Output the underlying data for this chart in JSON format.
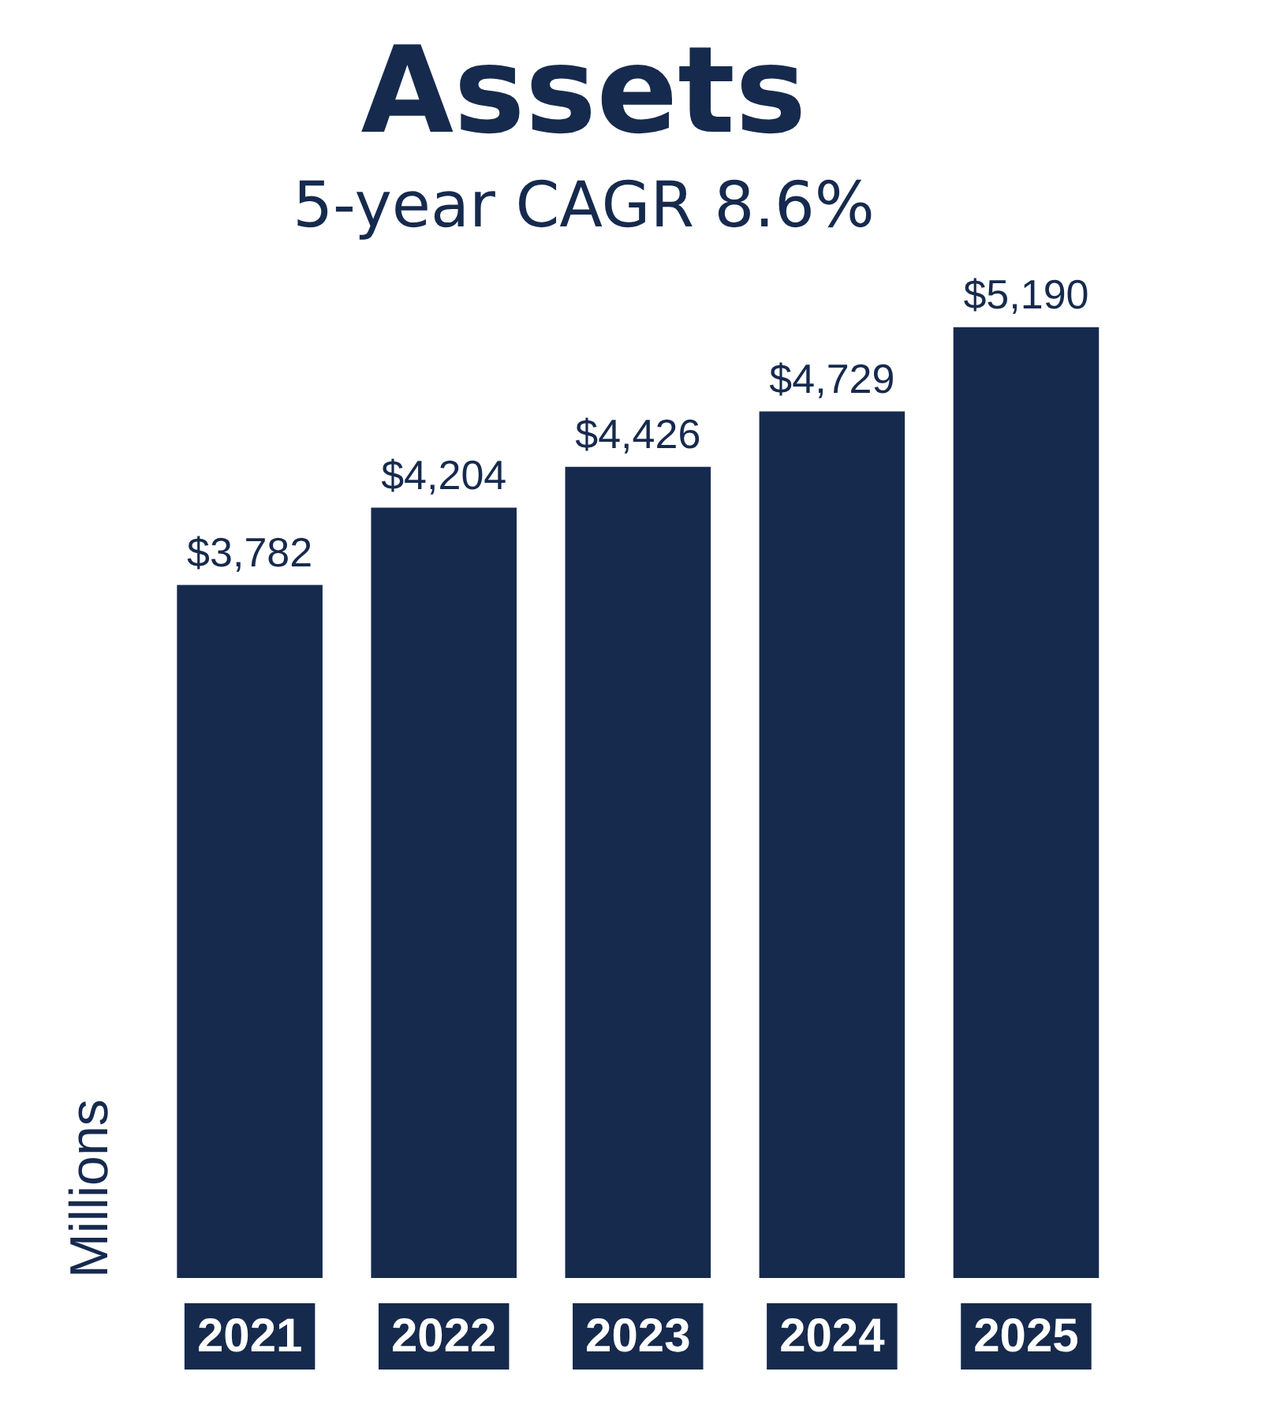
{
  "chart_data": {
    "type": "bar",
    "title": "Assets",
    "subtitle": "5-year CAGR 8.6%",
    "ylabel": "Millions",
    "categories": [
      "2021",
      "2022",
      "2023",
      "2024",
      "2025"
    ],
    "values": [
      3782,
      4204,
      4426,
      4729,
      5190
    ],
    "value_labels": [
      "$3,782",
      "$4,204",
      "$4,426",
      "$4,729",
      "$5,190"
    ],
    "color": "#162a4e",
    "grid": false,
    "legend": false,
    "tick_labels": "x"
  }
}
